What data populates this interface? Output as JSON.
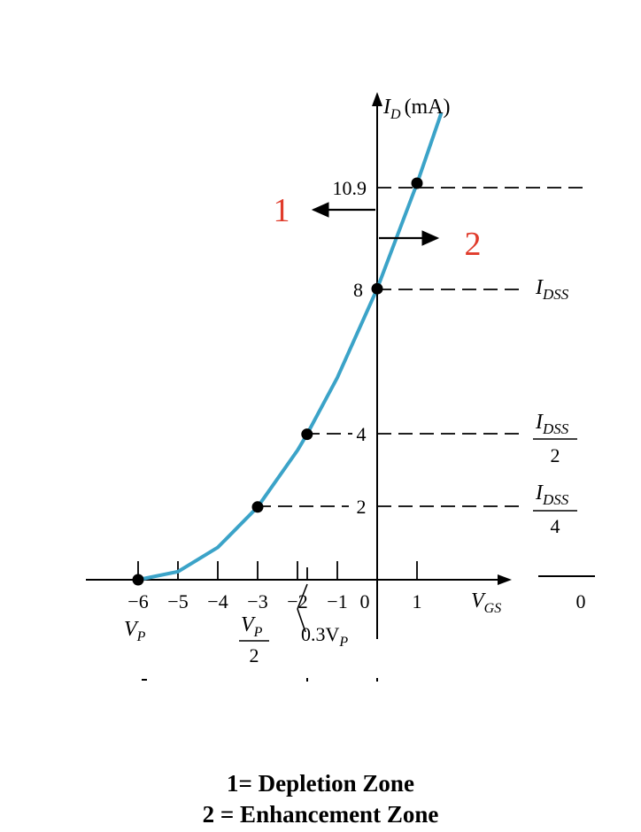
{
  "chart_data": {
    "type": "line",
    "title": "",
    "xlabel_main": "V",
    "xlabel_sub": "GS",
    "ylabel_main": "I",
    "ylabel_sub": "D",
    "ylabel_unit": "(mA)",
    "x_ticks": [
      "−6",
      "−5",
      "−4",
      "−3",
      "−2",
      "−1",
      "0",
      "1"
    ],
    "x_tick_values": [
      -6,
      -5,
      -4,
      -3,
      -2,
      -1,
      0,
      1
    ],
    "y_tick_labels": [
      {
        "value": 10.9,
        "text": "10.9"
      },
      {
        "value": 8,
        "text": "8"
      },
      {
        "value": 4,
        "text": "4"
      },
      {
        "value": 2,
        "text": "2"
      }
    ],
    "series": [
      {
        "points": [
          {
            "x": -6,
            "y": 0
          },
          {
            "x": -5,
            "y": 0.222
          },
          {
            "x": -4,
            "y": 0.889
          },
          {
            "x": -3,
            "y": 2
          },
          {
            "x": -2,
            "y": 3.556
          },
          {
            "x": -1.76,
            "y": 4
          },
          {
            "x": -1,
            "y": 5.556
          },
          {
            "x": 0,
            "y": 8
          },
          {
            "x": 1,
            "y": 10.889
          },
          {
            "x": 1.6,
            "y": 12.8
          }
        ],
        "color": "#3ba3c8"
      }
    ],
    "marked_points": [
      {
        "x": -6,
        "y": 0
      },
      {
        "x": -3,
        "y": 2
      },
      {
        "x": -1.76,
        "y": 4
      },
      {
        "x": 0,
        "y": 8
      },
      {
        "x": 1,
        "y": 10.9
      }
    ],
    "xlim": [
      -6.6,
      1.8
    ],
    "ylim": [
      0,
      13.2
    ],
    "annotations": {
      "idss": {
        "main": "I",
        "sub": "DSS"
      },
      "idss_half": {
        "main": "I",
        "sub": "DSS",
        "denominator": "2"
      },
      "idss_quarter": {
        "main": "I",
        "sub": "DSS",
        "denominator": "4"
      },
      "vp": {
        "main": "V",
        "sub": "P"
      },
      "vp_half": {
        "main": "V",
        "sub": "P",
        "denominator": "2"
      },
      "vp_03": {
        "prefix": "0.3V",
        "sub": "P"
      },
      "zone1": "1",
      "zone2": "2",
      "right_zero": "0"
    }
  },
  "legend": {
    "line1": "1= Depletion Zone",
    "line2": "2 = Enhancement Zone"
  },
  "colors": {
    "curve": "#3ba3c8",
    "zone_label": "#e03b2b",
    "axis": "#000000",
    "dash": "#000000"
  }
}
